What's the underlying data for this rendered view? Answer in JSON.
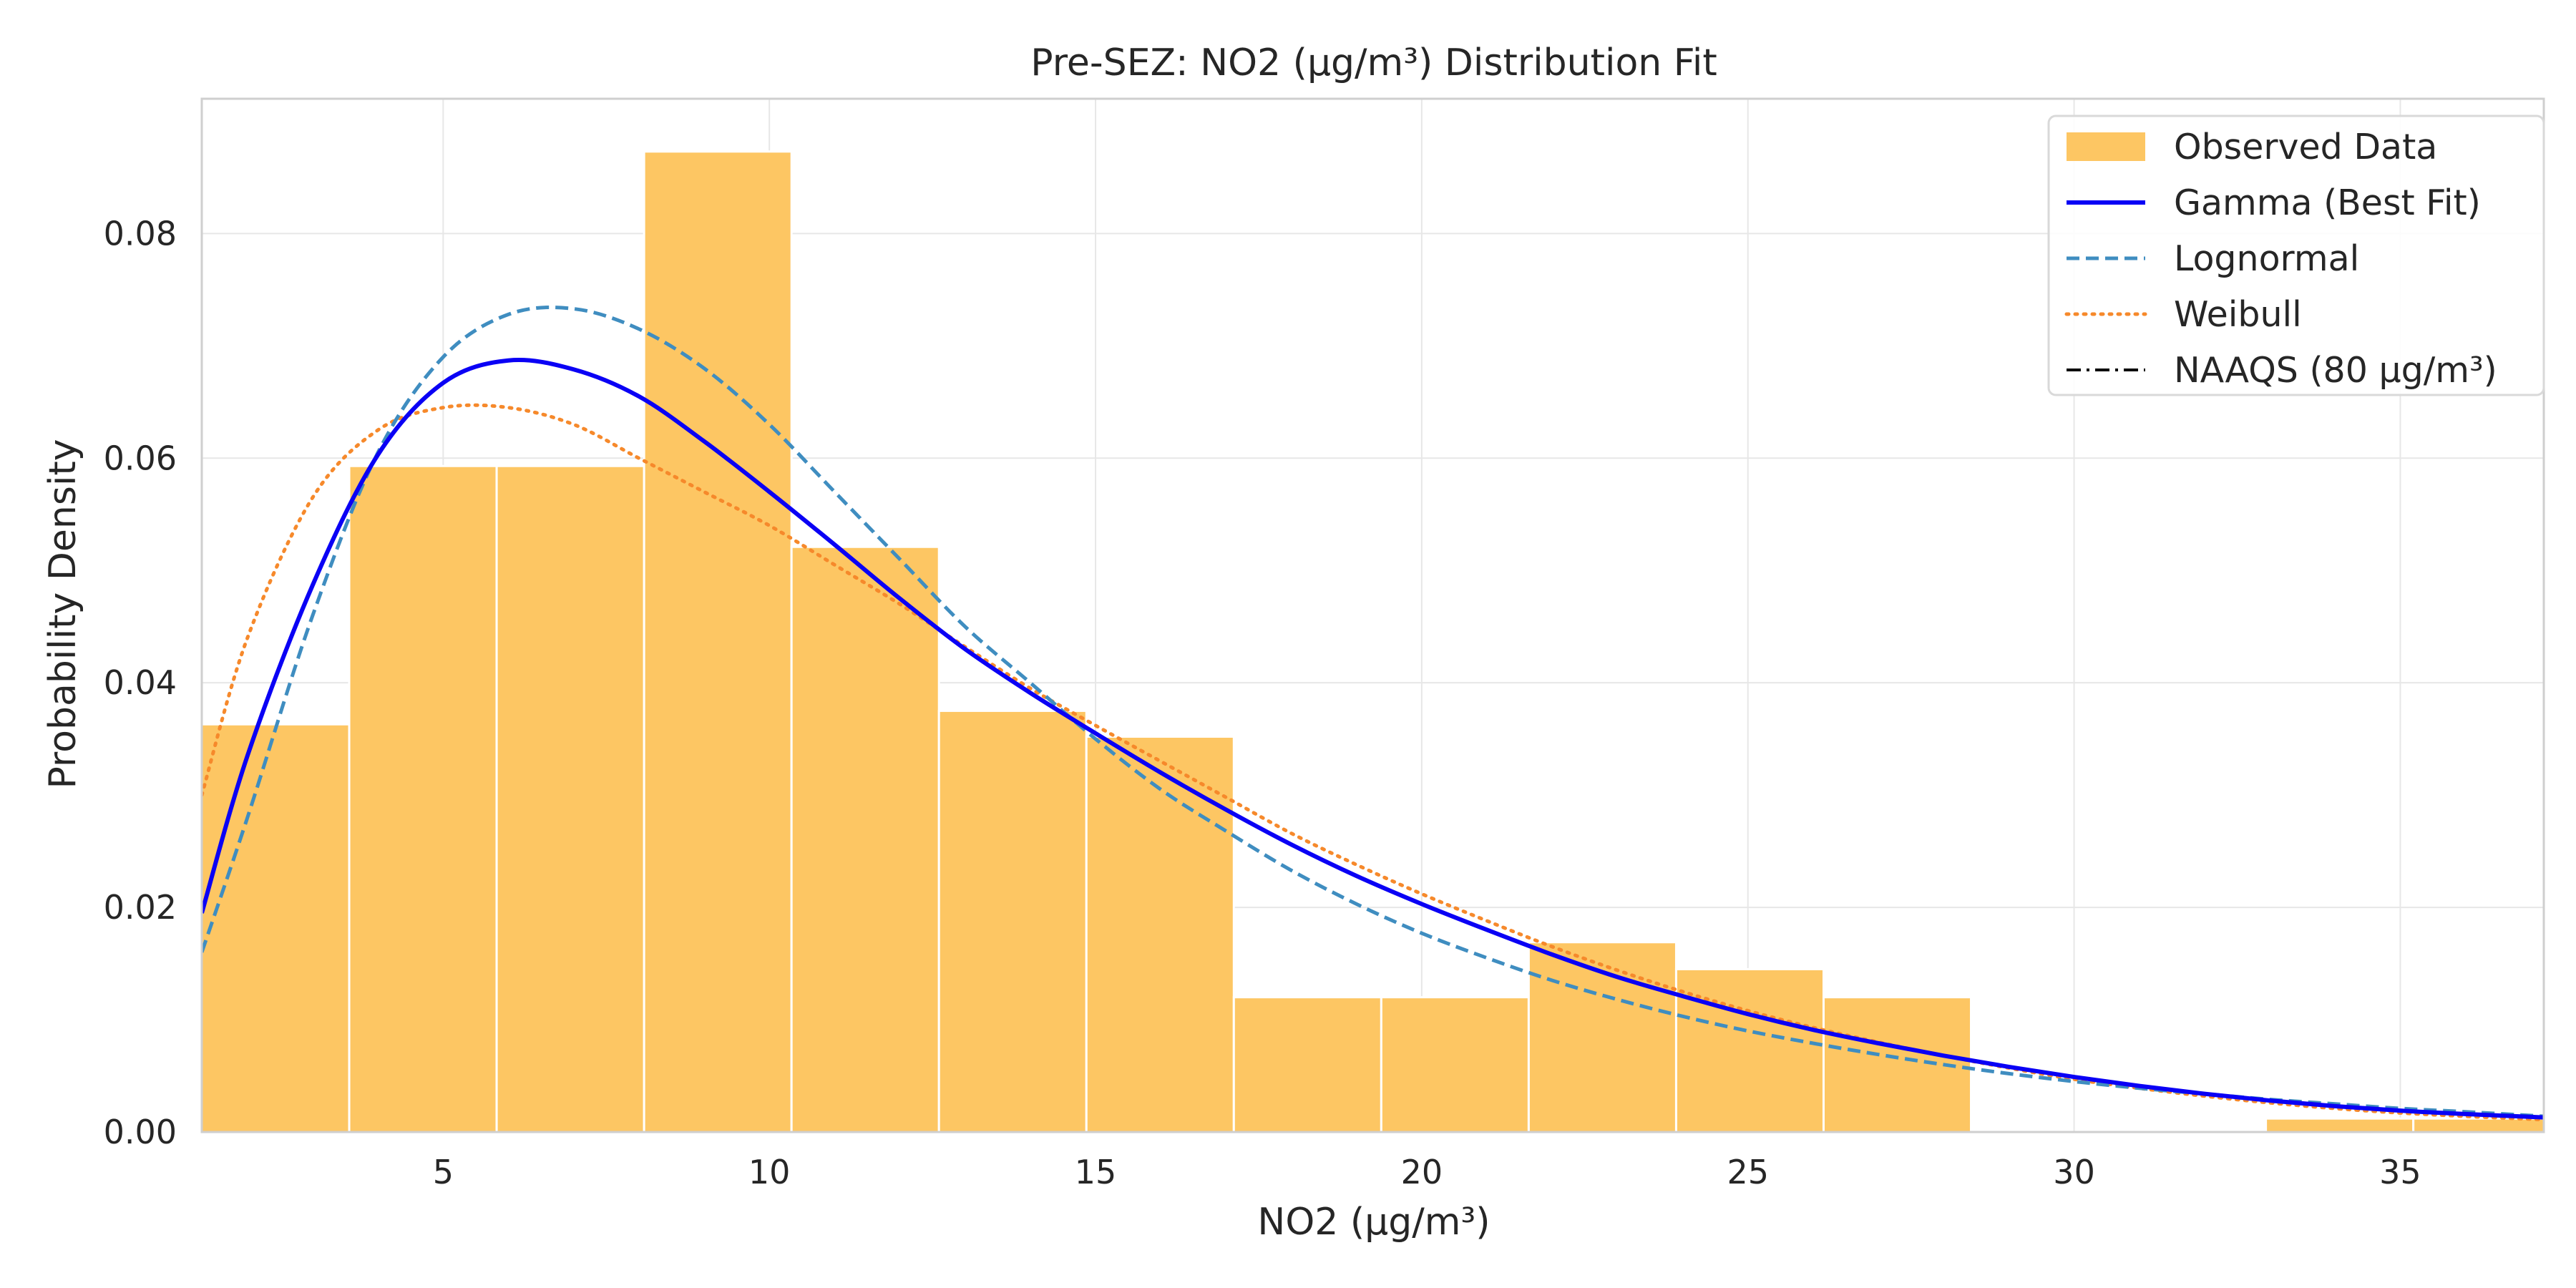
{
  "colors": {
    "observed": "#fdc663",
    "gamma": "#0a00f5",
    "lognormal": "#3f8dc0",
    "weibull": "#f6892b",
    "naaqs": "#000000",
    "grid": "#e7e7e7",
    "axes_edge": "#cfcfcf",
    "text": "#262626"
  },
  "chart_data": {
    "type": "bar",
    "title": "Pre-SEZ: NO2 (µg/m³) Distribution Fit",
    "xlabel": "NO2 (µg/m³)",
    "ylabel": "Probability Density",
    "xlim": [
      1.3,
      37.2
    ],
    "ylim": [
      0,
      0.092
    ],
    "xticks": [
      5,
      10,
      15,
      20,
      25,
      30,
      35
    ],
    "xtick_labels": [
      "5",
      "10",
      "15",
      "20",
      "25",
      "30",
      "35"
    ],
    "yticks": [
      0.0,
      0.02,
      0.04,
      0.06,
      0.08
    ],
    "ytick_labels": [
      "0.00",
      "0.02",
      "0.04",
      "0.06",
      "0.08"
    ],
    "grid": true,
    "legend_position": "top-right",
    "histogram": {
      "name": "Observed Data",
      "bin_edges": [
        1.3,
        3.56,
        5.82,
        8.08,
        10.34,
        12.6,
        14.86,
        17.12,
        19.38,
        21.64,
        23.9,
        26.16,
        28.42,
        30.68,
        32.94,
        35.2,
        37.46
      ],
      "density": [
        0.0363,
        0.0593,
        0.0593,
        0.0873,
        0.0521,
        0.0375,
        0.0352,
        0.012,
        0.012,
        0.0169,
        0.0145,
        0.012,
        0.0,
        0.0,
        0.0012,
        0.0012
      ]
    },
    "series": [
      {
        "name": "Gamma (Best Fit)",
        "style": "solid",
        "x": [
          1.3,
          2,
          3,
          4,
          5,
          6,
          7,
          8,
          9,
          10,
          11,
          12,
          13,
          14,
          15,
          16,
          17,
          18,
          19,
          20,
          21,
          22,
          23,
          24,
          25,
          26,
          27,
          28,
          29,
          30,
          31,
          32,
          33,
          34,
          35,
          36,
          37.2
        ],
        "y": [
          0.0195,
          0.0335,
          0.0487,
          0.0603,
          0.0667,
          0.0687,
          0.0679,
          0.0655,
          0.0615,
          0.057,
          0.0523,
          0.0475,
          0.043,
          0.0391,
          0.0355,
          0.032,
          0.0287,
          0.0256,
          0.0228,
          0.0203,
          0.018,
          0.0158,
          0.0138,
          0.0121,
          0.0105,
          0.0091,
          0.0079,
          0.0068,
          0.0058,
          0.0049,
          0.0041,
          0.0034,
          0.0028,
          0.0023,
          0.0019,
          0.0016,
          0.0013
        ]
      },
      {
        "name": "Lognormal",
        "style": "dashed",
        "x": [
          1.3,
          2,
          3,
          4,
          5,
          6,
          7,
          8,
          9,
          10,
          11,
          12,
          13,
          14,
          15,
          16,
          17,
          18,
          19,
          20,
          21,
          22,
          23,
          24,
          25,
          26,
          27,
          28,
          29,
          30,
          31,
          32,
          33,
          34,
          35,
          36,
          37.2
        ],
        "y": [
          0.016,
          0.028,
          0.046,
          0.0605,
          0.069,
          0.0728,
          0.0733,
          0.0715,
          0.068,
          0.063,
          0.057,
          0.051,
          0.045,
          0.04,
          0.035,
          0.0305,
          0.0268,
          0.0233,
          0.0203,
          0.0177,
          0.0155,
          0.0135,
          0.0118,
          0.0103,
          0.009,
          0.0079,
          0.0069,
          0.006,
          0.0052,
          0.0045,
          0.0039,
          0.0034,
          0.0029,
          0.0025,
          0.0021,
          0.0018,
          0.0014
        ]
      },
      {
        "name": "Weibull",
        "style": "dotted",
        "x": [
          1.3,
          2,
          3,
          4,
          5,
          6,
          7,
          8,
          9,
          10,
          11,
          12,
          13,
          14,
          15,
          16,
          17,
          18,
          19,
          20,
          21,
          22,
          23,
          24,
          25,
          26,
          27,
          28,
          29,
          30,
          31,
          32,
          33,
          34,
          35,
          36,
          37.2
        ],
        "y": [
          0.03,
          0.044,
          0.0565,
          0.0625,
          0.0645,
          0.0645,
          0.063,
          0.06,
          0.057,
          0.054,
          0.0505,
          0.047,
          0.0432,
          0.0395,
          0.0362,
          0.033,
          0.0298,
          0.0266,
          0.0238,
          0.0212,
          0.0188,
          0.0165,
          0.0144,
          0.0125,
          0.0108,
          0.0093,
          0.008,
          0.0068,
          0.0057,
          0.0047,
          0.0039,
          0.0032,
          0.0026,
          0.0021,
          0.0017,
          0.0014,
          0.0011
        ]
      },
      {
        "name": "NAAQS (80 µg/m³)",
        "style": "dashdot",
        "x": [],
        "y": []
      }
    ],
    "legend": [
      "Observed Data",
      "Gamma (Best Fit)",
      "Lognormal",
      "Weibull",
      "NAAQS (80 µg/m³)"
    ]
  }
}
